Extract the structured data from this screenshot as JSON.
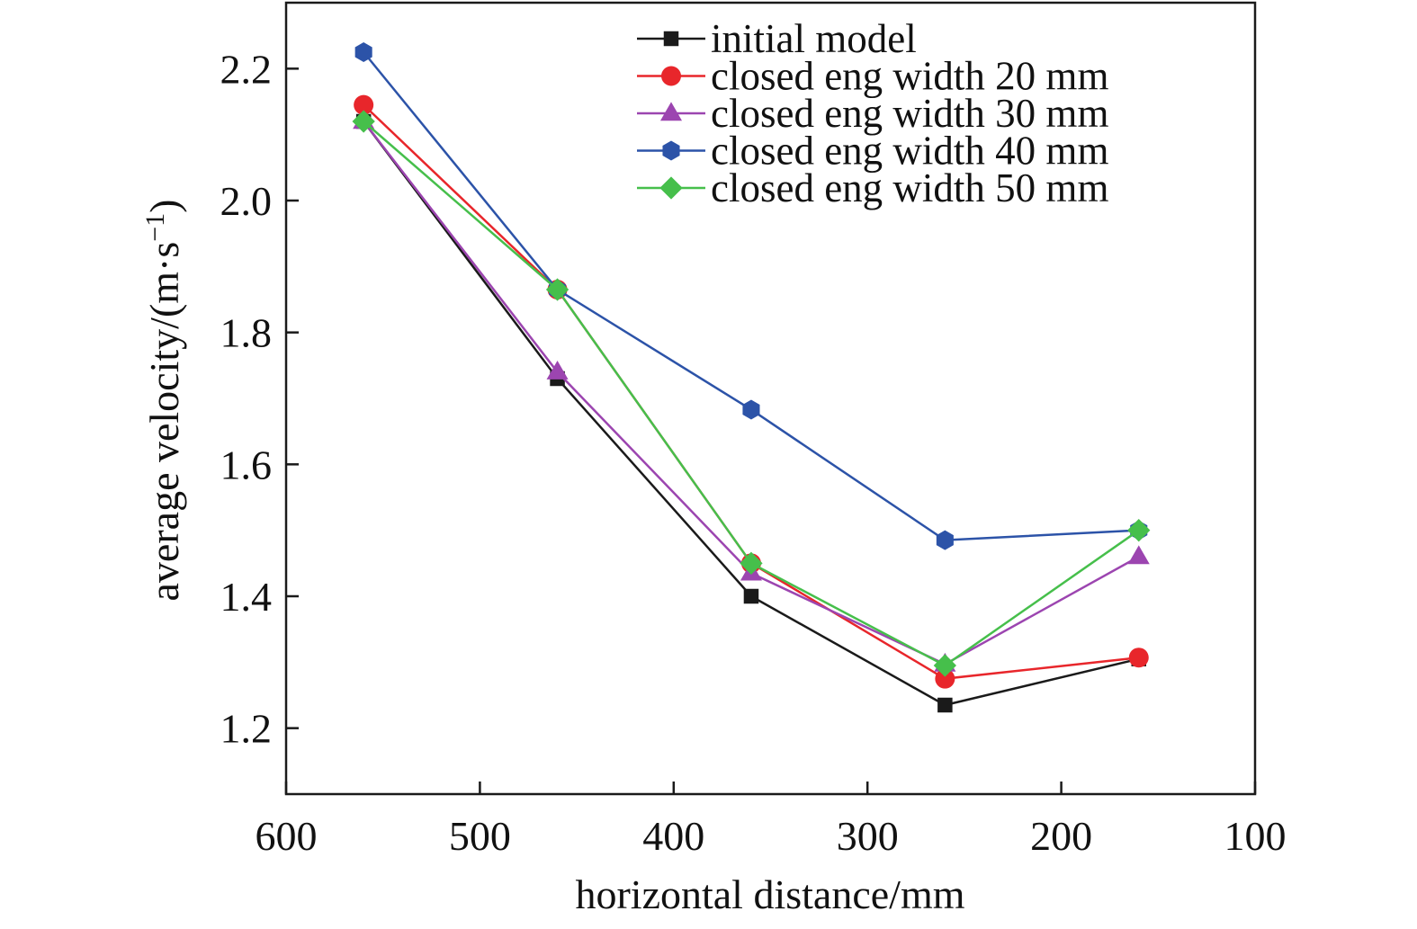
{
  "chart_data": {
    "type": "line",
    "xlabel": "horizontal distance/mm",
    "ylabel": "average velocity/(m·s",
    "ylabel_sup": "−1",
    "ylabel_close": ")",
    "xlim": [
      600,
      100
    ],
    "ylim": [
      1.1,
      2.3
    ],
    "x_ticks": [
      600,
      500,
      400,
      300,
      200,
      100
    ],
    "x_tick_labels": [
      "600",
      "500",
      "400",
      "300",
      "200",
      "100"
    ],
    "y_ticks": [
      1.2,
      1.4,
      1.6,
      1.8,
      2.0,
      2.2
    ],
    "y_tick_labels": [
      "1.2",
      "1.4",
      "1.6",
      "1.8",
      "2.0",
      "2.2"
    ],
    "x": [
      560,
      460,
      360,
      260,
      160
    ],
    "legend_position": "top-right",
    "series": [
      {
        "name": "initial model",
        "color": "#1a1a1a",
        "marker": "square",
        "values": [
          2.12,
          1.73,
          1.4,
          1.235,
          1.305
        ]
      },
      {
        "name": "closed eng width 20 mm",
        "color": "#e8262b",
        "marker": "circle",
        "values": [
          2.145,
          1.865,
          1.45,
          1.275,
          1.307
        ]
      },
      {
        "name": "closed eng width 30 mm",
        "color": "#9c45b0",
        "marker": "triangle",
        "values": [
          2.12,
          1.74,
          1.435,
          1.297,
          1.46
        ]
      },
      {
        "name": "closed eng width 40 mm",
        "color": "#2c53a8",
        "marker": "hexagon",
        "values": [
          2.225,
          1.865,
          1.683,
          1.485,
          1.5
        ]
      },
      {
        "name": "closed eng width 50 mm",
        "color": "#46bf4b",
        "marker": "diamond",
        "values": [
          2.12,
          1.865,
          1.45,
          1.295,
          1.5
        ]
      }
    ]
  }
}
